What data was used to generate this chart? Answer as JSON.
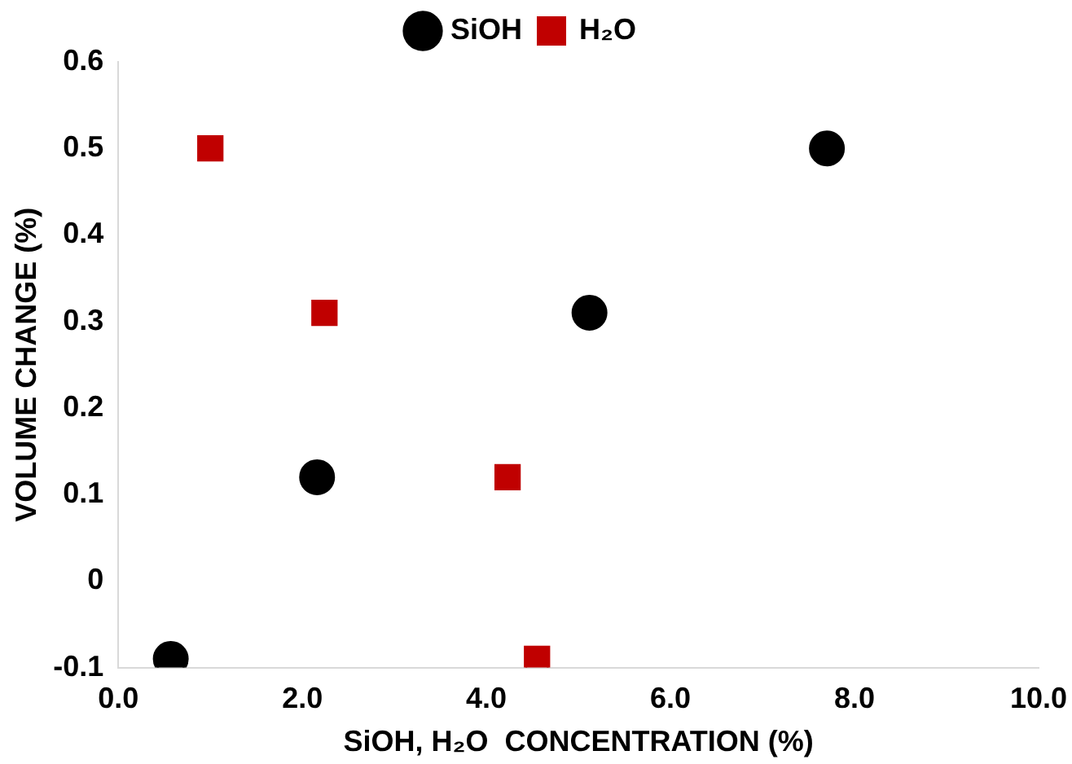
{
  "chart_data": {
    "type": "scatter",
    "xlabel": "SiOH, H₂O  CONCENTRATION (%)",
    "ylabel": "VOLUME CHANGE (%)",
    "xlim": [
      0,
      10
    ],
    "xticks": [
      {
        "value": 0,
        "label": "0.0"
      },
      {
        "value": 2,
        "label": "2.0"
      },
      {
        "value": 4,
        "label": "4.0"
      },
      {
        "value": 6,
        "label": "6.0"
      },
      {
        "value": 8,
        "label": "8.0"
      },
      {
        "value": 10,
        "label": "10.0"
      }
    ],
    "ylim": [
      -0.1,
      0.6
    ],
    "yticks": [
      -0.1,
      0,
      0.1,
      0.2,
      0.3,
      0.4,
      0.5,
      0.6
    ],
    "grid": false,
    "legend": "top",
    "series": [
      {
        "name": "SiOH",
        "color": "#000000",
        "marker": "circle",
        "x": [
          0.57,
          2.16,
          5.12,
          7.7
        ],
        "values": [
          -0.09,
          0.12,
          0.31,
          0.5
        ]
      },
      {
        "name": "H₂O",
        "color": "#c00000",
        "marker": "square",
        "x": [
          1.0,
          2.24,
          4.23,
          4.55
        ],
        "values": [
          0.5,
          0.31,
          0.12,
          -0.09
        ]
      }
    ]
  }
}
